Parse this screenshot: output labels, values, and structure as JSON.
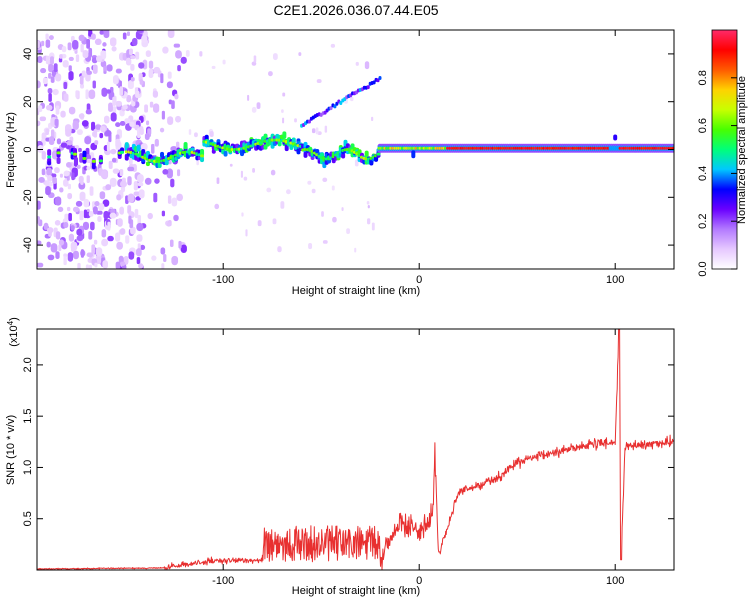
{
  "title": "C2E1.2026.036.07.44.E05",
  "chart_data": [
    {
      "type": "heatmap",
      "name": "spectrogram",
      "xlabel": "Height of straight line (km)",
      "ylabel": "Frequency (Hz)",
      "xlim": [
        -195,
        130
      ],
      "ylim": [
        -50,
        50
      ],
      "xticks": [
        -100,
        0,
        100
      ],
      "yticks": [
        -40,
        -20,
        0,
        20,
        40
      ],
      "colorbar": {
        "label": "Normalized spectral amplitude",
        "range": [
          0,
          1
        ],
        "ticks": [
          0.0,
          0.2,
          0.4,
          0.6,
          0.8
        ],
        "tick_labels": [
          "0.0",
          "0.2",
          "0.4",
          "0.6",
          "0.8"
        ],
        "stops": [
          "#ffffff",
          "#e6c8ff",
          "#b37aff",
          "#6a00ff",
          "#0000ff",
          "#00c8ff",
          "#00ff7a",
          "#48ff00",
          "#c8ff00",
          "#ffd200",
          "#ff5a00",
          "#ff0000",
          "#ff2a6a"
        ]
      },
      "features": [
        {
          "label": "main band",
          "x_range": [
            -150,
            130
          ],
          "frequency": 0
        },
        {
          "label": "rising branch",
          "x_range": [
            -60,
            -20
          ],
          "frequency": [
            10,
            30
          ]
        }
      ],
      "noise_region_x": [
        -195,
        -120
      ]
    },
    {
      "type": "line",
      "name": "snr",
      "xlabel": "Height of straight line (km)",
      "ylabel": "SNR (10 * v/v)",
      "multiplier": "(x10",
      "multiplier_exp": "4",
      "multiplier_close": ")",
      "xlim": [
        -195,
        130
      ],
      "ylim": [
        0,
        2.35
      ],
      "xticks": [
        -100,
        0,
        100
      ],
      "yticks": [
        0.5,
        1.0,
        1.5,
        2.0
      ],
      "ytick_labels": [
        "0.5",
        "1.0",
        "1.5",
        "2.0"
      ],
      "color": "#e83030",
      "key_points": [
        {
          "x": -195,
          "y": 0.01
        },
        {
          "x": -130,
          "y": 0.02
        },
        {
          "x": -110,
          "y": 0.08
        },
        {
          "x": -80,
          "y": 0.1
        },
        {
          "x": -60,
          "y": 0.3
        },
        {
          "x": -40,
          "y": 0.3
        },
        {
          "x": -20,
          "y": 0.1
        },
        {
          "x": -10,
          "y": 0.45
        },
        {
          "x": 0,
          "y": 0.4
        },
        {
          "x": 7,
          "y": 0.55
        },
        {
          "x": 8,
          "y": 1.1
        },
        {
          "x": 10,
          "y": 0.15
        },
        {
          "x": 20,
          "y": 0.75
        },
        {
          "x": 40,
          "y": 0.9
        },
        {
          "x": 50,
          "y": 1.05
        },
        {
          "x": 80,
          "y": 1.2
        },
        {
          "x": 100,
          "y": 1.25
        },
        {
          "x": 102,
          "y": 2.35
        },
        {
          "x": 103,
          "y": 0.1
        },
        {
          "x": 105,
          "y": 1.2
        },
        {
          "x": 130,
          "y": 1.25
        }
      ]
    }
  ]
}
